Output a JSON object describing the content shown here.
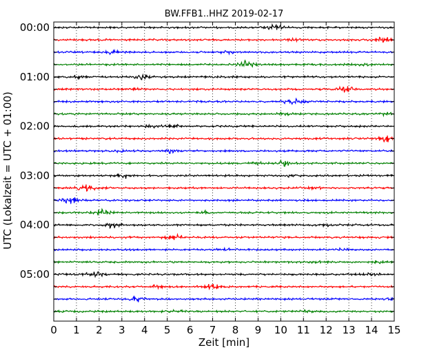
{
  "chart_data": {
    "type": "line",
    "title": "BW.FFB1..HHZ 2019-02-17",
    "xlabel": "Zeit  [min]",
    "ylabel": "UTC (Lokalzeit = UTC + 01:00)",
    "xlim": [
      0,
      15
    ],
    "x_ticks": [
      "0",
      "1",
      "2",
      "3",
      "4",
      "5",
      "6",
      "7",
      "8",
      "9",
      "10",
      "11",
      "12",
      "13",
      "14",
      "15"
    ],
    "y_tick_labels": [
      "00:00",
      "01:00",
      "02:00",
      "03:00",
      "04:00",
      "05:00"
    ],
    "grid": "vertical dotted lines at each minute",
    "trace_interval_minutes": 15,
    "trace_colors": [
      "#000000",
      "#ff0000",
      "#0000ff",
      "#008000"
    ],
    "series": [
      {
        "start": "00:00",
        "color": "#000000"
      },
      {
        "start": "00:15",
        "color": "#ff0000"
      },
      {
        "start": "00:30",
        "color": "#0000ff"
      },
      {
        "start": "00:45",
        "color": "#008000"
      },
      {
        "start": "01:00",
        "color": "#000000"
      },
      {
        "start": "01:15",
        "color": "#ff0000"
      },
      {
        "start": "01:30",
        "color": "#0000ff"
      },
      {
        "start": "01:45",
        "color": "#008000"
      },
      {
        "start": "02:00",
        "color": "#000000"
      },
      {
        "start": "02:15",
        "color": "#ff0000"
      },
      {
        "start": "02:30",
        "color": "#0000ff"
      },
      {
        "start": "02:45",
        "color": "#008000"
      },
      {
        "start": "03:00",
        "color": "#000000"
      },
      {
        "start": "03:15",
        "color": "#ff0000"
      },
      {
        "start": "03:30",
        "color": "#0000ff"
      },
      {
        "start": "03:45",
        "color": "#008000"
      },
      {
        "start": "04:00",
        "color": "#000000"
      },
      {
        "start": "04:15",
        "color": "#ff0000"
      },
      {
        "start": "04:30",
        "color": "#0000ff"
      },
      {
        "start": "04:45",
        "color": "#008000"
      },
      {
        "start": "05:00",
        "color": "#000000"
      },
      {
        "start": "05:15",
        "color": "#ff0000"
      },
      {
        "start": "05:30",
        "color": "#0000ff"
      },
      {
        "start": "05:45",
        "color": "#008000"
      }
    ]
  }
}
